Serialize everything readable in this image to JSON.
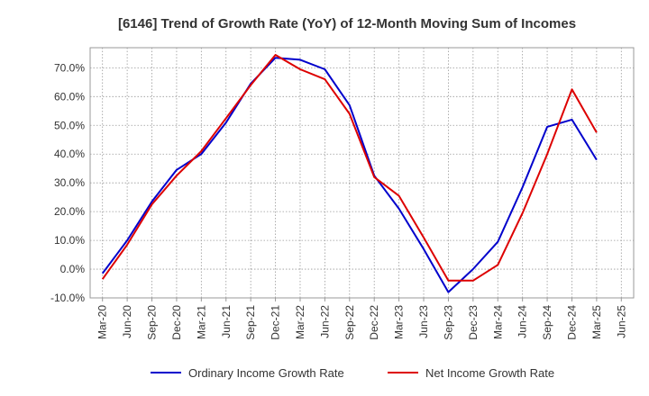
{
  "chart_data": {
    "type": "line",
    "title": "[6146]  Trend of Growth Rate (YoY) of 12-Month Moving Sum of Incomes",
    "xlabel": "",
    "ylabel": "",
    "x": [
      "Mar-20",
      "Jun-20",
      "Sep-20",
      "Dec-20",
      "Mar-21",
      "Jun-21",
      "Sep-21",
      "Dec-21",
      "Mar-22",
      "Jun-22",
      "Sep-22",
      "Dec-22",
      "Mar-23",
      "Jun-23",
      "Sep-23",
      "Dec-23",
      "Mar-24",
      "Jun-24",
      "Sep-24",
      "Dec-24",
      "Mar-25",
      "Jun-25"
    ],
    "ylim": [
      -10,
      77
    ],
    "yticks": [
      -10,
      0,
      10,
      20,
      30,
      40,
      50,
      60,
      70
    ],
    "ytick_labels": [
      "-10.0%",
      "0.0%",
      "10.0%",
      "20.0%",
      "30.0%",
      "40.0%",
      "50.0%",
      "60.0%",
      "70.0%"
    ],
    "grid": true,
    "legend_position": "bottom",
    "series": [
      {
        "name": "Ordinary Income Growth Rate",
        "color": "#0000cc",
        "values": [
          -1.5,
          10.0,
          23.5,
          34.5,
          40.0,
          51.0,
          64.5,
          73.5,
          72.8,
          69.5,
          57.0,
          32.5,
          21.0,
          7.0,
          -8.0,
          0.0,
          9.5,
          28.5,
          49.5,
          52.0,
          38.0,
          null
        ]
      },
      {
        "name": "Net Income Growth Rate",
        "color": "#dd0000",
        "values": [
          -3.5,
          8.5,
          22.5,
          32.5,
          41.0,
          52.5,
          64.0,
          74.5,
          69.5,
          66.0,
          54.0,
          32.0,
          25.5,
          11.0,
          -4.0,
          -4.0,
          1.5,
          19.5,
          40.0,
          62.5,
          47.5,
          null
        ]
      }
    ]
  }
}
